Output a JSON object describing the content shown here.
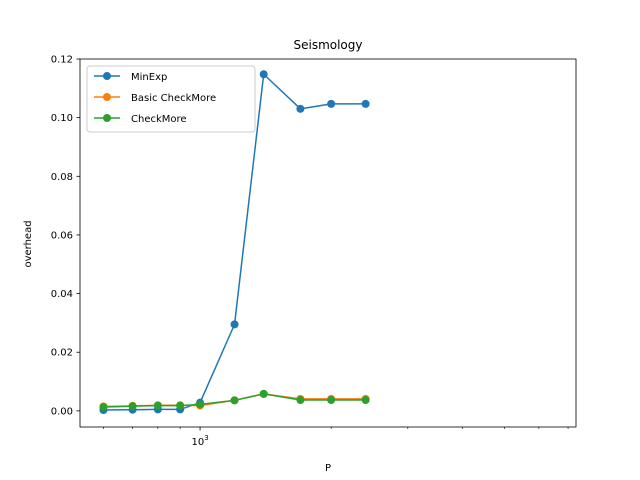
{
  "chart_data": {
    "type": "line",
    "title": "Seismology",
    "xlabel": "P",
    "ylabel": "overhead",
    "x_scale": "log",
    "x_tick_labels": [
      {
        "value": 1000,
        "base": "10",
        "exp": "3"
      }
    ],
    "xlim": [
      530,
      7300
    ],
    "ylim": [
      -0.0055,
      0.12
    ],
    "y_ticks": [
      0.0,
      0.02,
      0.04,
      0.06,
      0.08,
      0.1,
      0.12
    ],
    "y_tick_labels": [
      "0.00",
      "0.02",
      "0.04",
      "0.06",
      "0.08",
      "0.10",
      "0.12"
    ],
    "grid": false,
    "legend_position": "upper-left",
    "x": [
      600,
      700,
      800,
      900,
      1000,
      1200,
      1400,
      1700,
      2000,
      2400
    ],
    "series": [
      {
        "name": "MinExp",
        "color": "#1f77b4",
        "values": [
          0.0003,
          0.0004,
          0.0005,
          0.0005,
          0.0028,
          0.0295,
          0.1148,
          0.103,
          0.1047,
          0.1047
        ]
      },
      {
        "name": "Basic CheckMore",
        "color": "#ff7f0e",
        "values": [
          0.0015,
          0.0017,
          0.0019,
          0.0019,
          0.0018,
          0.0036,
          0.0058,
          0.0041,
          0.0041,
          0.0041
        ]
      },
      {
        "name": "CheckMore",
        "color": "#2ca02c",
        "values": [
          0.0013,
          0.0016,
          0.0018,
          0.0018,
          0.0022,
          0.0036,
          0.0058,
          0.0037,
          0.0037,
          0.0037
        ]
      }
    ]
  }
}
